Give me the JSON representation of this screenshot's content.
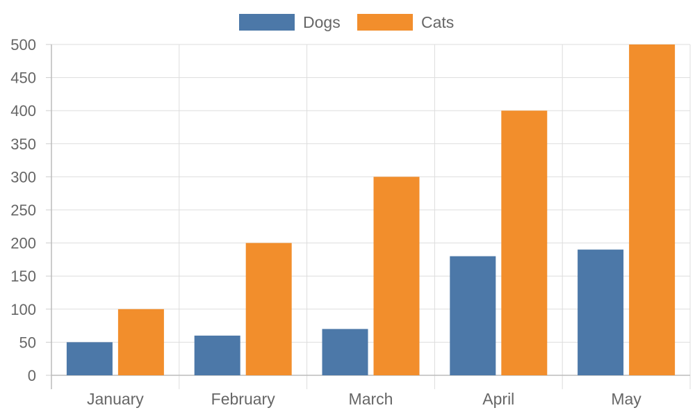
{
  "chart_data": {
    "type": "bar",
    "categories": [
      "January",
      "February",
      "March",
      "April",
      "May"
    ],
    "series": [
      {
        "name": "Dogs",
        "values": [
          50,
          60,
          70,
          180,
          190
        ],
        "color": "#4c78a8"
      },
      {
        "name": "Cats",
        "values": [
          100,
          200,
          300,
          400,
          500
        ],
        "color": "#f28e2c"
      }
    ],
    "y_ticks": [
      0,
      50,
      100,
      150,
      200,
      250,
      300,
      350,
      400,
      450,
      500
    ],
    "ylim": [
      0,
      500
    ],
    "grid": true,
    "legend_position": "top-center",
    "title": "",
    "xlabel": "",
    "ylabel": ""
  }
}
